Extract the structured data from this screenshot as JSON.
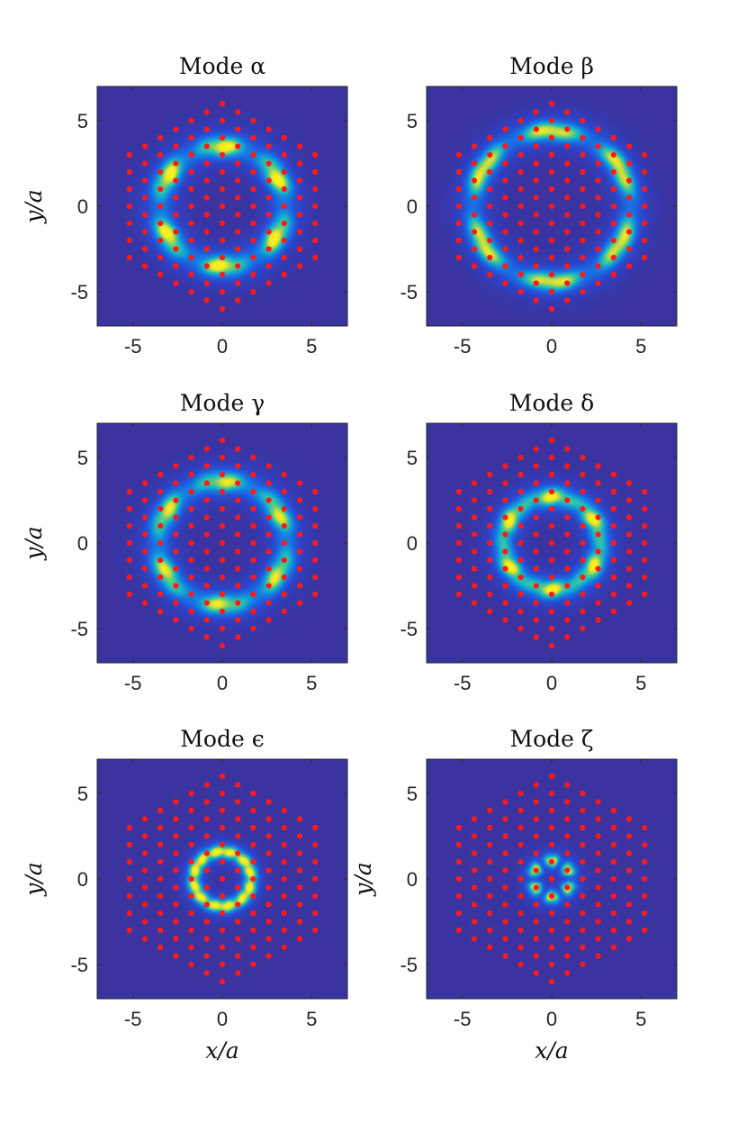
{
  "chart_data": {
    "type": "heatmap",
    "layout": "3 rows x 2 columns",
    "xlim": [
      -7,
      7
    ],
    "ylim": [
      -7,
      7
    ],
    "ticks": [
      -5,
      0,
      5
    ],
    "xlabel": "x/a",
    "ylabel": "y/a",
    "colors": {
      "background": "#3a33a0",
      "mode_glow": "#1e9fe0",
      "mode_peak": "#f2ee2a",
      "lattice_points": "#ff1a1a",
      "axes": "#262626"
    },
    "lattice": {
      "type": "hexagonal",
      "spacing": 1.0,
      "extent": "hexagon of lattice points out to radius about 6.9 a, with the central region of the lattice empty of points only where the field peaks"
    },
    "panels": [
      {
        "title": "Mode α",
        "ring_radius": 3.5,
        "lobes": 6,
        "lobe_phase_deg": 30,
        "lobe_contrast": 0.8,
        "peak_intensity": 1.0,
        "ring_width": 0.55,
        "show_ylabel": true,
        "show_xlabel": false
      },
      {
        "title": "Mode β",
        "ring_radius": 4.4,
        "lobes": 6,
        "lobe_phase_deg": 90,
        "lobe_contrast": 0.8,
        "peak_intensity": 1.0,
        "ring_width": 0.5,
        "show_ylabel": false,
        "show_xlabel": false
      },
      {
        "title": "Mode γ",
        "ring_radius": 3.6,
        "lobes": 6,
        "lobe_phase_deg": 30,
        "lobe_contrast": 0.7,
        "peak_intensity": 0.9,
        "ring_width": 0.55,
        "show_ylabel": true,
        "show_xlabel": false
      },
      {
        "title": "Mode δ",
        "ring_radius": 2.7,
        "lobes": 6,
        "lobe_phase_deg": 90,
        "lobe_contrast": 0.5,
        "peak_intensity": 0.95,
        "ring_width": 0.5,
        "show_ylabel": false,
        "show_xlabel": false
      },
      {
        "title": "Mode ϵ",
        "ring_radius": 1.6,
        "lobes": 6,
        "lobe_phase_deg": 30,
        "lobe_contrast": 0.15,
        "peak_intensity": 1.0,
        "ring_width": 0.35,
        "show_ylabel": true,
        "show_xlabel": true
      },
      {
        "title": "Mode ζ",
        "ring_radius": 1.05,
        "lobes": 6,
        "lobe_phase_deg": 90,
        "lobe_contrast": 0.9,
        "peak_intensity": 1.0,
        "ring_width": 0.35,
        "show_ylabel": true,
        "show_xlabel": true
      }
    ]
  }
}
